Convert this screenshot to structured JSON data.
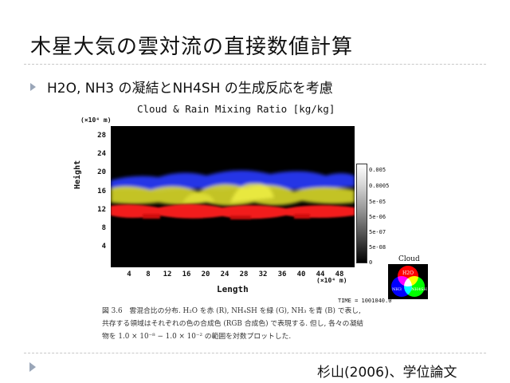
{
  "slide": {
    "title": "木星大気の雲対流の直接数値計算",
    "bullet": "H2O, NH3 の凝結とNH4SH の生成反応を考慮",
    "citation": "杉山(2006)、学位論文"
  },
  "figure": {
    "title": "Cloud & Rain Mixing Ratio [kg/kg]",
    "y_unit": "(×10⁴ m)",
    "x_unit": "(×10⁴ m)",
    "ylabel": "Height",
    "xlabel": "Length",
    "yticks": [
      "28",
      "24",
      "20",
      "16",
      "12",
      "8",
      "4"
    ],
    "xticks": [
      "4",
      "8",
      "12",
      "16",
      "20",
      "24",
      "28",
      "32",
      "36",
      "40",
      "44",
      "48"
    ],
    "colorbar_labels": [
      "0.005",
      "0.0005",
      "5e-05",
      "5e-06",
      "5e-07",
      "5e-08",
      "0"
    ],
    "time_label": "TIME = 1001040.0",
    "cloud_legend": {
      "title": "Cloud",
      "labels": [
        "H2O",
        "NH3",
        "NH4SH"
      ],
      "colors": [
        "#ff0000",
        "#0000ff",
        "#00ff00"
      ]
    },
    "band_colors": {
      "blue": "#2a3aff",
      "yellow": "#e6e62a",
      "red": "#ff1a1a"
    }
  },
  "caption": {
    "line1": "図 3.6　雲混合比の分布. H₂O を赤 (R), NH₄SH を緑 (G), NH₃ を青 (B) で表し,",
    "line2": "共存する領域はそれぞれの色の合成色 (RGB 合成色) で表現する. 但し, 各々の凝結",
    "line3": "物を 1.0 × 10⁻⁸ − 1.0 × 10⁻² の範囲を対数プロットした."
  }
}
